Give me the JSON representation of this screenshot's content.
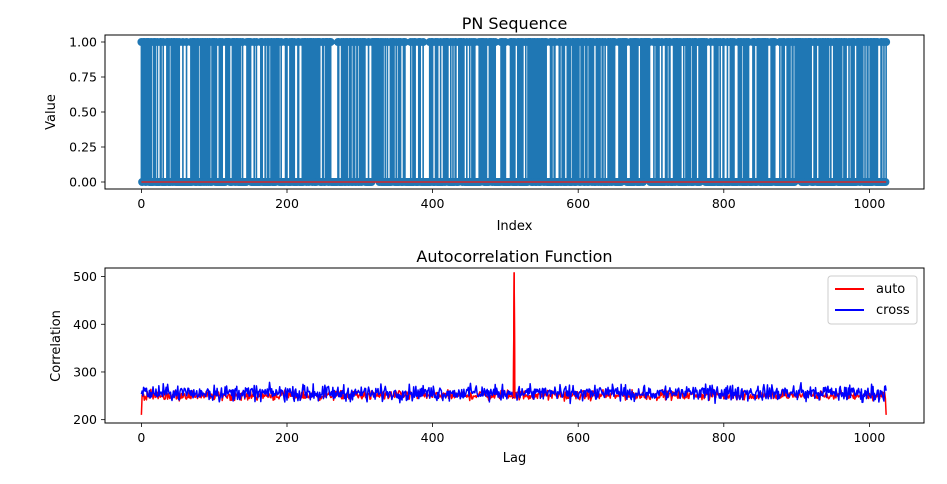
{
  "chart_data": [
    {
      "type": "stem",
      "title": "PN Sequence",
      "xlabel": "Index",
      "ylabel": "Value",
      "xlim": [
        -50,
        1075
      ],
      "ylim": [
        -0.05,
        1.05
      ],
      "xticks": [
        0,
        200,
        400,
        600,
        800,
        1000
      ],
      "xtick_labels": [
        "0",
        "200",
        "400",
        "600",
        "800",
        "1000"
      ],
      "yticks": [
        0.0,
        0.25,
        0.5,
        0.75,
        1.0
      ],
      "ytick_labels": [
        "0.00",
        "0.25",
        "0.50",
        "0.75",
        "1.00"
      ],
      "n_points": 1024,
      "value_set": [
        0,
        1
      ],
      "baseline": 0,
      "marker_color": "#1f77b4",
      "baseline_color": "#d62728"
    },
    {
      "type": "line",
      "title": "Autocorrelation Function",
      "xlabel": "Lag",
      "ylabel": "Correlation",
      "xlim": [
        -50,
        1075
      ],
      "ylim": [
        193,
        518
      ],
      "xticks": [
        0,
        200,
        400,
        600,
        800,
        1000
      ],
      "xtick_labels": [
        "0",
        "200",
        "400",
        "600",
        "800",
        "1000"
      ],
      "yticks": [
        200,
        300,
        400,
        500
      ],
      "ytick_labels": [
        "200",
        "300",
        "400",
        "500"
      ],
      "legend_position": "top-right",
      "series": [
        {
          "name": "auto",
          "color": "#ff0000",
          "n_points": 1024,
          "mean": 251,
          "spread": 6,
          "peak": {
            "x": 512,
            "y": 508
          },
          "endpoints": [
            {
              "x": 0,
              "y": 210
            },
            {
              "x": 1023,
              "y": 210
            }
          ]
        },
        {
          "name": "cross",
          "color": "#0000ff",
          "n_points": 1024,
          "mean": 256,
          "spread": 10
        }
      ]
    }
  ]
}
